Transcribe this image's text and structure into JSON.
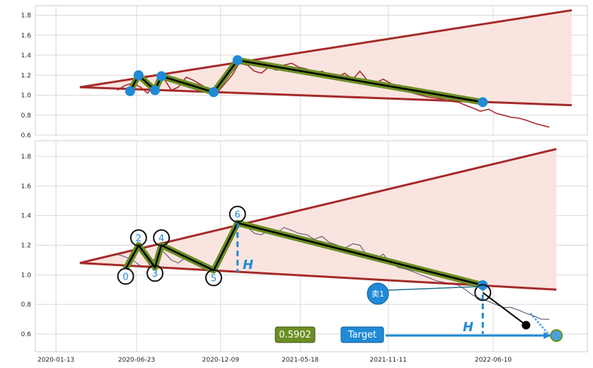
{
  "chart_data": [
    {
      "type": "line",
      "panel": "top",
      "ylim": [
        0.6,
        1.9
      ],
      "yticks": [
        "0.6",
        "0.8",
        "1.0",
        "1.2",
        "1.4",
        "1.6",
        "1.8"
      ],
      "xlim": [
        "2020-01-13",
        "2022-12-31"
      ],
      "grid": true,
      "colors": {
        "price": "#a52a2a",
        "trend": "#a52a2a",
        "band_fill": "#f9e1dc",
        "pattern_outer": "#6b8e23",
        "pattern_inner": "#000000",
        "pivot": "#1f8ad6"
      },
      "price": {
        "x": [
          "2020-05-15",
          "2020-06-01",
          "2020-06-15",
          "2020-07-01",
          "2020-07-15",
          "2020-08-01",
          "2020-08-15",
          "2020-09-01",
          "2020-09-15",
          "2020-10-01",
          "2020-10-15",
          "2020-11-01",
          "2020-11-15",
          "2020-12-01",
          "2020-12-15",
          "2021-01-01",
          "2021-01-15",
          "2021-02-01",
          "2021-02-15",
          "2021-03-01",
          "2021-03-15",
          "2021-04-01",
          "2021-04-15",
          "2021-05-01",
          "2021-05-15",
          "2021-06-01",
          "2021-06-15",
          "2021-07-01",
          "2021-07-15",
          "2021-08-01",
          "2021-08-15",
          "2021-09-01",
          "2021-09-15",
          "2021-10-01",
          "2021-10-15",
          "2021-11-01",
          "2021-11-15",
          "2021-12-01",
          "2021-12-15",
          "2022-01-01",
          "2022-01-15",
          "2022-02-01",
          "2022-02-15",
          "2022-03-01",
          "2022-03-15",
          "2022-04-01",
          "2022-04-15",
          "2022-05-01",
          "2022-05-15",
          "2022-06-01",
          "2022-06-15",
          "2022-07-01",
          "2022-07-15",
          "2022-08-01",
          "2022-08-15",
          "2022-09-01",
          "2022-09-15",
          "2022-10-01"
        ],
        "y": [
          1.05,
          1.1,
          1.12,
          1.08,
          1.02,
          1.12,
          1.18,
          1.05,
          1.08,
          1.18,
          1.15,
          1.1,
          1.06,
          1.02,
          1.1,
          1.2,
          1.32,
          1.3,
          1.24,
          1.22,
          1.28,
          1.25,
          1.3,
          1.32,
          1.28,
          1.26,
          1.22,
          1.24,
          1.2,
          1.18,
          1.22,
          1.16,
          1.24,
          1.14,
          1.12,
          1.16,
          1.12,
          1.08,
          1.06,
          1.02,
          1.0,
          0.98,
          0.97,
          0.96,
          0.94,
          0.93,
          0.9,
          0.87,
          0.84,
          0.86,
          0.82,
          0.8,
          0.78,
          0.77,
          0.75,
          0.72,
          0.7,
          0.68
        ]
      },
      "upper_trend": {
        "x": [
          "2020-03-01",
          "2022-11-15"
        ],
        "y": [
          1.08,
          1.85
        ]
      },
      "lower_trend": {
        "x": [
          "2020-03-01",
          "2022-11-15"
        ],
        "y": [
          1.08,
          0.9
        ]
      },
      "pattern": {
        "x": [
          "2020-06-10",
          "2020-06-27",
          "2020-07-30",
          "2020-08-12",
          "2020-11-25",
          "2021-01-12",
          "2022-05-20"
        ],
        "y": [
          1.04,
          1.2,
          1.05,
          1.19,
          1.03,
          1.35,
          0.93
        ]
      }
    },
    {
      "type": "line",
      "panel": "bottom",
      "ylim": [
        0.5,
        1.9
      ],
      "yticks": [
        "0.6",
        "0.8",
        "1.0",
        "1.2",
        "1.4",
        "1.6",
        "1.8"
      ],
      "xlim": [
        "2020-01-13",
        "2022-12-31"
      ],
      "xticks": [
        "2020-01-13",
        "2020-06-23",
        "2020-12-09",
        "2021-05-18",
        "2021-11-11",
        "2022-06-10"
      ],
      "grid": true,
      "price": {
        "x": [
          "2020-05-15",
          "2020-06-01",
          "2020-06-15",
          "2020-07-01",
          "2020-07-15",
          "2020-08-01",
          "2020-08-15",
          "2020-09-01",
          "2020-09-15",
          "2020-10-01",
          "2020-10-15",
          "2020-11-01",
          "2020-11-15",
          "2020-12-01",
          "2020-12-15",
          "2021-01-01",
          "2021-01-15",
          "2021-02-01",
          "2021-02-15",
          "2021-03-01",
          "2021-03-15",
          "2021-04-01",
          "2021-04-15",
          "2021-05-01",
          "2021-05-15",
          "2021-06-01",
          "2021-06-15",
          "2021-07-01",
          "2021-07-15",
          "2021-08-01",
          "2021-08-15",
          "2021-09-01",
          "2021-09-15",
          "2021-10-01",
          "2021-10-15",
          "2021-11-01",
          "2021-11-15",
          "2021-12-01",
          "2021-12-15",
          "2022-01-01",
          "2022-01-15",
          "2022-02-01",
          "2022-02-15",
          "2022-03-01",
          "2022-03-15",
          "2022-04-01",
          "2022-04-15",
          "2022-05-01",
          "2022-05-15",
          "2022-06-01",
          "2022-06-15",
          "2022-07-01",
          "2022-07-15",
          "2022-08-01",
          "2022-08-15",
          "2022-09-01",
          "2022-09-15",
          "2022-10-01"
        ],
        "y": [
          1.14,
          1.12,
          1.1,
          1.06,
          1.05,
          1.12,
          1.16,
          1.1,
          1.08,
          1.12,
          1.08,
          1.06,
          1.02,
          1.05,
          1.16,
          1.3,
          1.34,
          1.32,
          1.28,
          1.27,
          1.3,
          1.28,
          1.32,
          1.3,
          1.28,
          1.27,
          1.24,
          1.26,
          1.22,
          1.2,
          1.18,
          1.21,
          1.2,
          1.12,
          1.1,
          1.14,
          1.08,
          1.05,
          1.04,
          1.02,
          1.0,
          0.98,
          0.96,
          0.95,
          0.94,
          0.93,
          0.9,
          0.86,
          0.84,
          0.82,
          0.8,
          0.78,
          0.78,
          0.76,
          0.74,
          0.72,
          0.7,
          0.7
        ]
      },
      "upper_trend": {
        "x": [
          "2020-03-01",
          "2022-10-15"
        ],
        "y": [
          1.08,
          1.85
        ]
      },
      "lower_trend": {
        "x": [
          "2020-03-01",
          "2022-10-15"
        ],
        "y": [
          1.08,
          0.9
        ]
      },
      "pattern": {
        "x": [
          "2020-06-01",
          "2020-06-27",
          "2020-07-30",
          "2020-08-12",
          "2020-11-25",
          "2021-01-12",
          "2022-05-20"
        ],
        "y": [
          1.04,
          1.2,
          1.05,
          1.2,
          1.03,
          1.35,
          0.93
        ]
      },
      "point_labels": [
        "0",
        "2",
        "3",
        "4",
        "5",
        "6"
      ],
      "label_points": [
        {
          "label": "0",
          "x": "2020-06-01",
          "y": 0.99
        },
        {
          "label": "2",
          "x": "2020-06-27",
          "y": 1.25
        },
        {
          "label": "3",
          "x": "2020-07-30",
          "y": 1.01
        },
        {
          "label": "4",
          "x": "2020-08-12",
          "y": 1.25
        },
        {
          "label": "5",
          "x": "2020-11-25",
          "y": 0.98
        },
        {
          "label": "6",
          "x": "2021-01-12",
          "y": 1.41
        }
      ],
      "height_label": "H",
      "sell_label": "卖1",
      "target_label": "Target",
      "target_value": "0.5902",
      "target_point": {
        "x": "2022-10-15",
        "y": 0.59
      },
      "breakout_point": {
        "x": "2022-05-20",
        "y": 0.88
      },
      "black_dot": {
        "x": "2022-08-15",
        "y": 0.66
      }
    }
  ]
}
